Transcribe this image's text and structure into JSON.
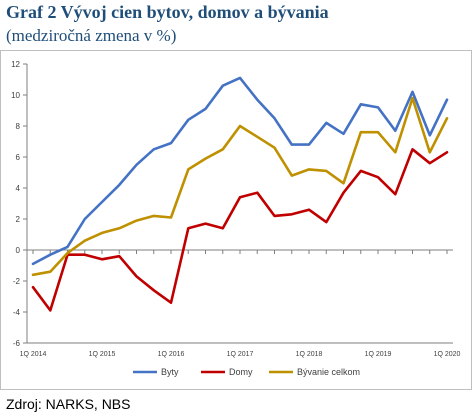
{
  "header": {
    "title": "Graf 2 Vývoj cien bytov, domov a bývania",
    "subtitle": "(medziročná zmena v %)"
  },
  "footer": {
    "source": "Zdroj: NARKS, NBS"
  },
  "chart_data": {
    "type": "line",
    "title": "",
    "xlabel": "",
    "ylabel": "",
    "ylim": [
      -6,
      12
    ],
    "yticks": [
      -6,
      -4,
      -2,
      0,
      2,
      4,
      6,
      8,
      10,
      12
    ],
    "grid": false,
    "legend": "bottom",
    "x": [
      "1Q 2014",
      "2Q 2014",
      "3Q 2014",
      "4Q 2014",
      "1Q 2015",
      "2Q 2015",
      "3Q 2015",
      "4Q 2015",
      "1Q 2016",
      "2Q 2016",
      "3Q 2016",
      "4Q 2016",
      "1Q 2017",
      "2Q 2017",
      "3Q 2017",
      "4Q 2017",
      "1Q 2018",
      "2Q 2018",
      "3Q 2018",
      "4Q 2018",
      "1Q 2019",
      "2Q 2019",
      "3Q 2019",
      "4Q 2019",
      "1Q 2020"
    ],
    "xtick_labels": [
      "1Q 2014",
      "1Q 2015",
      "1Q 2016",
      "1Q 2017",
      "1Q 2018",
      "1Q 2019",
      "1Q 2020"
    ],
    "series": [
      {
        "name": "Byty",
        "color": "#4472c4",
        "values": [
          -0.9,
          -0.3,
          0.2,
          2.0,
          3.1,
          4.2,
          5.5,
          6.5,
          6.9,
          8.4,
          9.1,
          10.6,
          11.1,
          9.7,
          8.5,
          6.8,
          6.8,
          8.2,
          7.5,
          9.4,
          9.2,
          7.7,
          10.2,
          7.4,
          9.7
        ]
      },
      {
        "name": "Domy",
        "color": "#c00000",
        "values": [
          -2.4,
          -3.9,
          -0.3,
          -0.3,
          -0.6,
          -0.4,
          -1.7,
          -2.6,
          -3.4,
          1.4,
          1.7,
          1.4,
          3.4,
          3.7,
          2.2,
          2.3,
          2.6,
          1.8,
          3.7,
          5.1,
          4.7,
          3.6,
          6.5,
          5.6,
          6.3
        ]
      },
      {
        "name": "Bývanie celkom",
        "color": "#bf9000",
        "values": [
          -1.6,
          -1.4,
          -0.2,
          0.6,
          1.1,
          1.4,
          1.9,
          2.2,
          2.1,
          5.2,
          5.9,
          6.5,
          8.0,
          7.3,
          6.6,
          4.8,
          5.2,
          5.1,
          4.3,
          7.6,
          7.6,
          6.3,
          9.8,
          6.3,
          8.5
        ]
      }
    ]
  }
}
